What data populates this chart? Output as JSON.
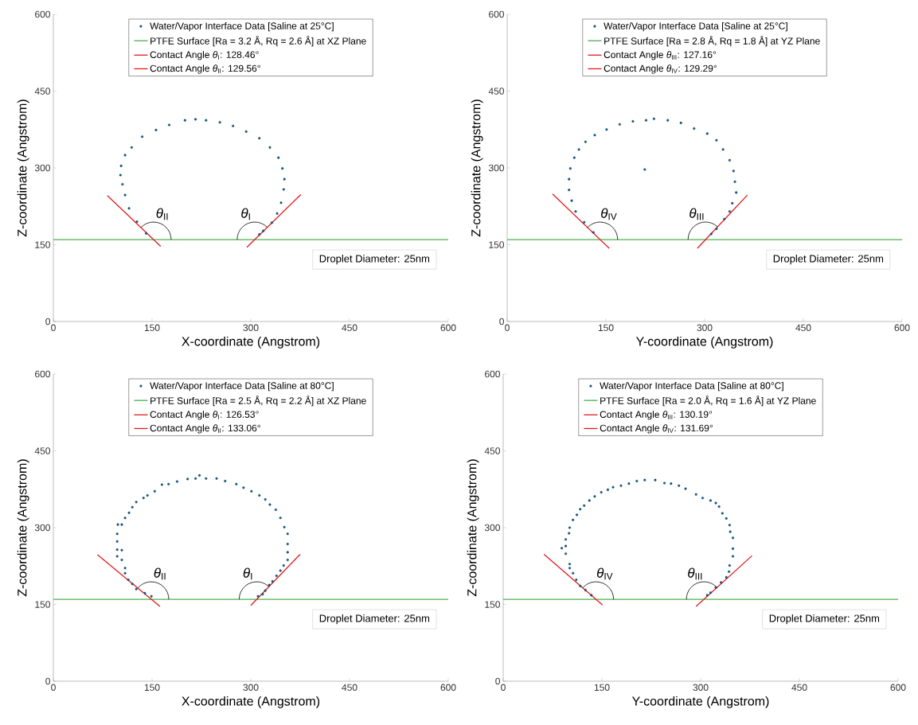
{
  "chart_data": [
    {
      "type": "scatter",
      "xlabel": "X-coordinate (Angstrom)",
      "ylabel": "Z-coordinate (Angstrom)",
      "xlim": [
        0,
        600
      ],
      "ylim": [
        0,
        600
      ],
      "xticks": [
        0,
        150,
        300,
        450,
        600
      ],
      "yticks": [
        0,
        150,
        300,
        450,
        600
      ],
      "legend": "top",
      "grid": false,
      "series": [
        {
          "name": "Water/Vapor Interface Data [Saline at 25°C]",
          "marker": "circle",
          "color": "#0072bd",
          "x": [
            141,
            127,
            115,
            109,
            105,
            102,
            103,
            109,
            119,
            135,
            156,
            176,
            200,
            216,
            232,
            253,
            273,
            293,
            313,
            329,
            342,
            348,
            351,
            350,
            346,
            340,
            332,
            319,
            313
          ],
          "values": [
            172,
            195,
            221,
            247,
            268,
            286,
            304,
            325,
            340,
            361,
            374,
            384,
            393,
            395,
            393,
            389,
            382,
            371,
            358,
            340,
            320,
            299,
            278,
            258,
            232,
            211,
            193,
            177,
            170
          ]
        },
        {
          "name": "PTFE Surface [Ra = 3.2 Å, Rq = 2.6 Å] at XZ Plane",
          "type": "line",
          "marker": "none",
          "color": "#4caf50",
          "x": [
            0,
            600
          ],
          "values": [
            160,
            160
          ]
        },
        {
          "name": "Contact Angle *θ*$_{I}$: 128.46°",
          "type": "line",
          "marker": "none",
          "color": "#e41a1c",
          "x": [
            294,
            376
          ],
          "values": [
            145,
            248
          ]
        },
        {
          "name": "Contact Angle *θ*$_{II}$: 129.56°",
          "type": "line",
          "marker": "none",
          "color": "#e41a1c",
          "x": [
            82,
            163
          ],
          "values": [
            246,
            147
          ]
        }
      ],
      "annotations": [
        "*θ*$_{I}$",
        "*θ*$_{II}$",
        "Droplet Diameter: 25nm"
      ]
    },
    {
      "type": "scatter",
      "xlabel": "Y-coordinate (Angstrom)",
      "ylabel": "Z-coordinate (Angstrom)",
      "xlim": [
        0,
        600
      ],
      "ylim": [
        0,
        600
      ],
      "xticks": [
        0,
        150,
        300,
        450,
        600
      ],
      "yticks": [
        0,
        150,
        300,
        450,
        600
      ],
      "legend": "top",
      "grid": false,
      "series": [
        {
          "name": "Water/Vapor Interface Data [Saline at 25°C]",
          "marker": "circle",
          "color": "#0072bd",
          "x": [
            131,
            117,
            104,
            98,
            94,
            94,
            96,
            102,
            109,
            119,
            133,
            151,
            171,
            191,
            211,
            223,
            244,
            264,
            284,
            304,
            318,
            328,
            338,
            344,
            346,
            348,
            342,
            338,
            330,
            318,
            310,
            209
          ],
          "values": [
            174,
            194,
            215,
            236,
            257,
            278,
            299,
            320,
            336,
            351,
            364,
            375,
            385,
            391,
            393,
            396,
            393,
            388,
            377,
            367,
            354,
            336,
            315,
            294,
            273,
            252,
            231,
            215,
            200,
            181,
            171,
            297
          ]
        },
        {
          "name": "PTFE Surface [Ra = 2.8 Å, Rq = 1.8 Å] at YZ Plane",
          "type": "line",
          "marker": "none",
          "color": "#4caf50",
          "x": [
            0,
            600
          ],
          "values": [
            160,
            160
          ]
        },
        {
          "name": "Contact Angle *θ*$_{III}$: 127.16°",
          "type": "line",
          "marker": "none",
          "color": "#e41a1c",
          "x": [
            289,
            365
          ],
          "values": [
            143,
            247
          ]
        },
        {
          "name": "Contact Angle *θ*$_{IV}$: 129.29°",
          "type": "line",
          "marker": "none",
          "color": "#e41a1c",
          "x": [
            69,
            155
          ],
          "values": [
            249,
            143
          ]
        }
      ],
      "annotations": [
        "*θ*$_{III}$",
        "*θ*$_{IV}$",
        "Droplet Diameter: 25nm"
      ]
    },
    {
      "type": "scatter",
      "xlabel": "X-coordinate (Angstrom)",
      "ylabel": "Z-coordinate (Angstrom)",
      "xlim": [
        0,
        600
      ],
      "ylim": [
        0,
        600
      ],
      "xticks": [
        0,
        150,
        300,
        450,
        600
      ],
      "yticks": [
        0,
        150,
        300,
        450,
        600
      ],
      "legend": "top",
      "grid": false,
      "series": [
        {
          "name": "Water/Vapor Interface Data [Saline at 80°C]",
          "marker": "circle",
          "color": "#0072bd",
          "x": [
            149,
            139,
            126,
            120,
            114,
            109,
            109,
            104,
            97,
            97,
            104,
            97,
            97,
            98,
            104,
            109,
            115,
            120,
            126,
            137,
            143,
            154,
            165,
            175,
            188,
            204,
            216,
            222,
            232,
            248,
            261,
            278,
            289,
            301,
            313,
            322,
            329,
            338,
            345,
            351,
            356,
            356,
            356,
            356,
            350,
            345,
            339,
            333,
            328,
            322,
            318,
            311
          ],
          "values": [
            166,
            172,
            180,
            190,
            198,
            211,
            221,
            237,
            244,
            257,
            256,
            273,
            288,
            306,
            306,
            319,
            329,
            340,
            350,
            358,
            363,
            371,
            384,
            385,
            390,
            395,
            396,
            402,
            396,
            396,
            391,
            385,
            378,
            371,
            363,
            355,
            345,
            335,
            319,
            301,
            288,
            268,
            252,
            237,
            226,
            216,
            206,
            195,
            188,
            177,
            170,
            166
          ]
        },
        {
          "name": "PTFE Surface [Ra = 2.5 Å, Rq = 2.2 Å] at XZ Plane",
          "type": "line",
          "marker": "none",
          "color": "#4caf50",
          "x": [
            0,
            600
          ],
          "values": [
            160,
            160
          ]
        },
        {
          "name": "Contact Angle *θ*$_{I}$: 126.53°",
          "type": "line",
          "marker": "none",
          "color": "#e41a1c",
          "x": [
            300,
            375
          ],
          "values": [
            148,
            248
          ]
        },
        {
          "name": "Contact Angle *θ*$_{II}$: 133.06°",
          "type": "line",
          "marker": "none",
          "color": "#e41a1c",
          "x": [
            67,
            162
          ],
          "values": [
            247,
            146
          ]
        }
      ],
      "annotations": [
        "*θ*$_{I}$",
        "*θ*$_{II}$",
        "Droplet Diameter: 25nm"
      ]
    },
    {
      "type": "scatter",
      "xlabel": "Y-coordinate (Angstrom)",
      "ylabel": "Z-coordinate (Angstrom)",
      "xlim": [
        0,
        600
      ],
      "ylim": [
        0,
        600
      ],
      "xticks": [
        0,
        150,
        300,
        450,
        600
      ],
      "yticks": [
        0,
        150,
        300,
        450,
        600
      ],
      "legend": "top",
      "grid": false,
      "series": [
        {
          "name": "Water/Vapor Interface Data [Saline at 80°C]",
          "marker": "circle",
          "color": "#0072bd",
          "x": [
            134,
            125,
            117,
            111,
            106,
            101,
            101,
            95,
            95,
            89,
            95,
            100,
            101,
            106,
            112,
            117,
            123,
            131,
            139,
            149,
            159,
            167,
            179,
            191,
            203,
            215,
            231,
            245,
            255,
            267,
            277,
            293,
            303,
            315,
            323,
            328,
            333,
            339,
            344,
            345,
            349,
            349,
            349,
            344,
            343,
            339,
            331,
            323,
            315,
            310
          ],
          "values": [
            168,
            178,
            186,
            198,
            211,
            221,
            229,
            249,
            264,
            260,
            277,
            289,
            300,
            315,
            325,
            336,
            343,
            353,
            361,
            369,
            374,
            379,
            382,
            386,
            391,
            393,
            393,
            387,
            386,
            382,
            376,
            365,
            358,
            353,
            348,
            341,
            328,
            318,
            305,
            292,
            280,
            259,
            244,
            226,
            214,
            203,
            193,
            183,
            173,
            168
          ]
        },
        {
          "name": "PTFE Surface [Ra = 2.0 Å, Rq = 1.6 Å] at YZ Plane",
          "type": "line",
          "marker": "none",
          "color": "#4caf50",
          "x": [
            0,
            600
          ],
          "values": [
            160,
            160
          ]
        },
        {
          "name": "Contact Angle *θ*$_{III}$: 130.19°",
          "type": "line",
          "marker": "none",
          "color": "#e41a1c",
          "x": [
            293,
            378
          ],
          "values": [
            146,
            245
          ]
        },
        {
          "name": "Contact Angle *θ*$_{IV}$: 131.69°",
          "type": "line",
          "marker": "none",
          "color": "#e41a1c",
          "x": [
            62,
            151
          ],
          "values": [
            248,
            149
          ]
        }
      ],
      "annotations": [
        "*θ*$_{III}$",
        "*θ*$_{IV}$",
        "Droplet Diameter: 25nm"
      ]
    }
  ]
}
